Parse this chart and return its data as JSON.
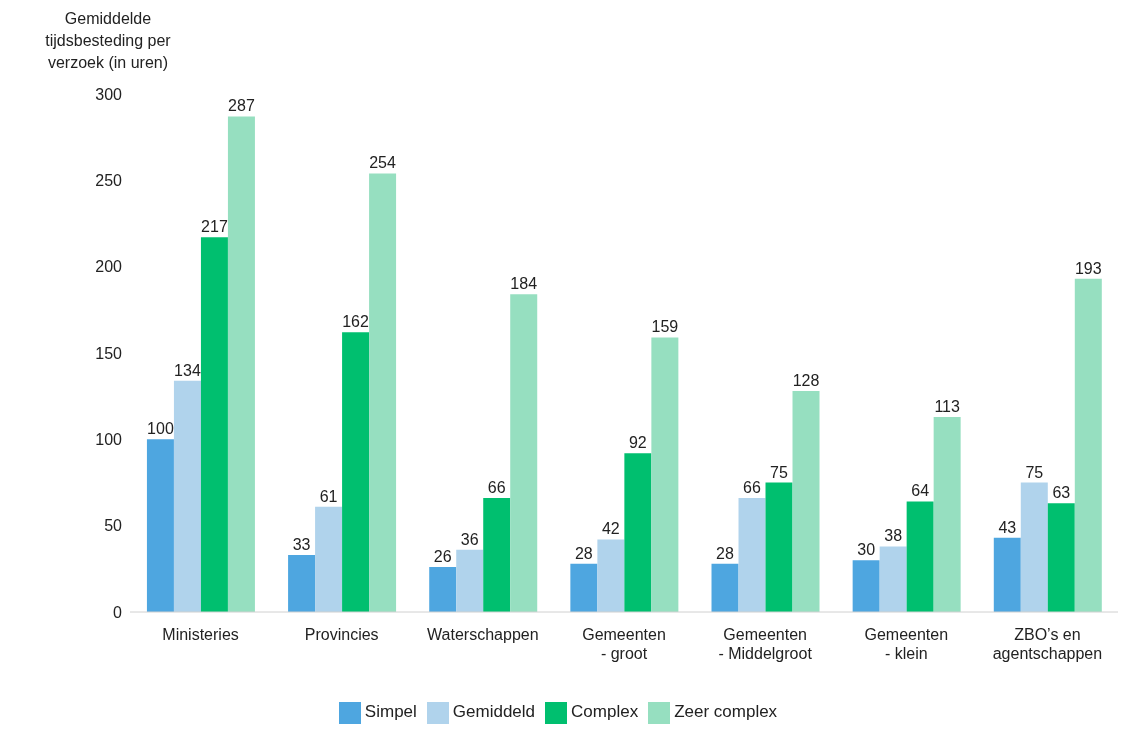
{
  "chart_data": {
    "type": "bar",
    "ylabel": "Gemiddelde tijdsbesteding per verzoek (in uren)",
    "categories": [
      "Ministeries",
      "Provincies",
      "Waterschappen",
      "Gemeenten - groot",
      "Gemeenten - Middelgroot",
      "Gemeenten - klein",
      "ZBO’s en agentschappen"
    ],
    "series": [
      {
        "name": "Simpel",
        "color": "#4ea6e0",
        "values": [
          100,
          33,
          26,
          28,
          28,
          30,
          43
        ]
      },
      {
        "name": "Gemiddeld",
        "color": "#b0d3ec",
        "values": [
          134,
          61,
          36,
          42,
          66,
          38,
          75
        ]
      },
      {
        "name": "Complex",
        "color": "#00bf6f",
        "values": [
          217,
          162,
          66,
          92,
          75,
          64,
          63
        ]
      },
      {
        "name": "Zeer complex",
        "color": "#96dfc0",
        "values": [
          287,
          254,
          184,
          159,
          128,
          113,
          193
        ]
      }
    ],
    "ylim": [
      0,
      300
    ],
    "yticks": [
      0,
      50,
      100,
      150,
      200,
      250,
      300
    ],
    "grid": false,
    "legend": "bottom",
    "data_labels": true
  }
}
